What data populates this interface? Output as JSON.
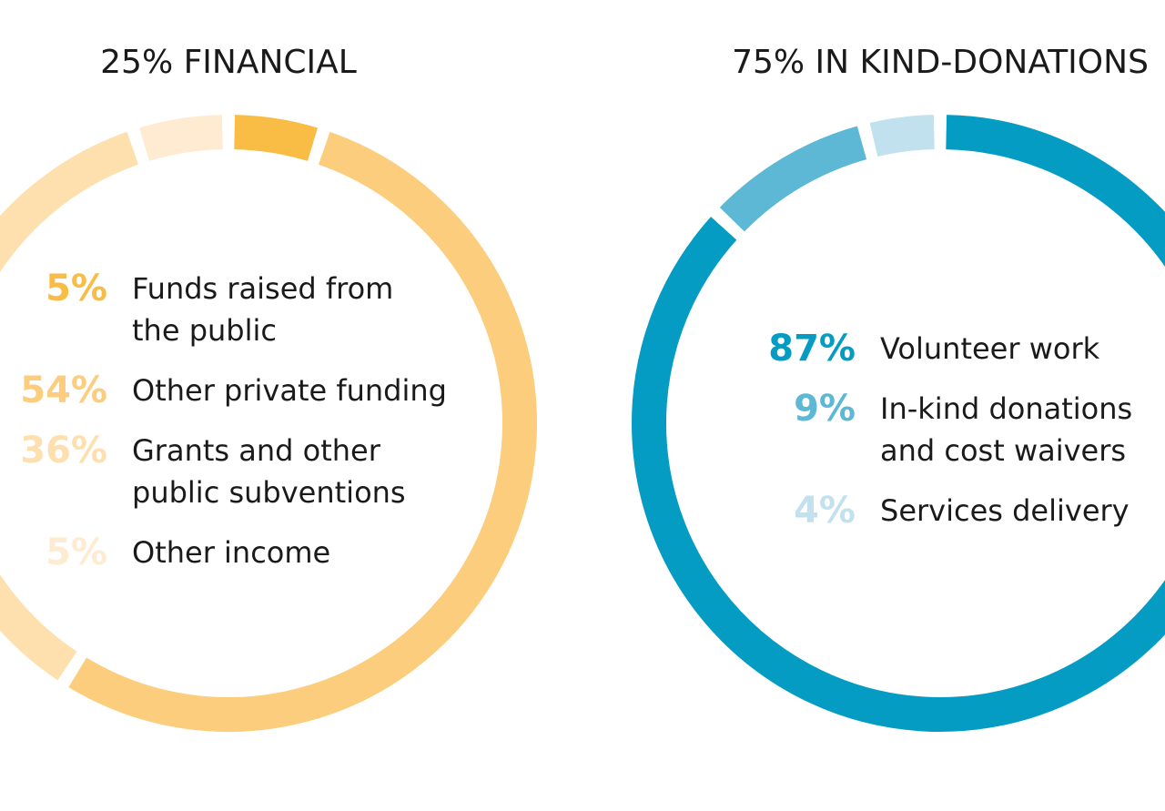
{
  "chart_data": [
    {
      "type": "pie",
      "title": "25% FINANCIAL",
      "series": [
        {
          "name": "Funds raised from the public",
          "label_lines": [
            "Funds raised from",
            "the public"
          ],
          "value": 5,
          "value_label": "5%",
          "color": "#f9bc45"
        },
        {
          "name": "Other private funding",
          "label_lines": [
            "Other private funding"
          ],
          "value": 54,
          "value_label": "54%",
          "color": "#fbcd7c"
        },
        {
          "name": "Grants and other public subventions",
          "label_lines": [
            "Grants and other",
            "public subventions"
          ],
          "value": 36,
          "value_label": "36%",
          "color": "#fde0ae"
        },
        {
          "name": "Other income",
          "label_lines": [
            "Other income"
          ],
          "value": 5,
          "value_label": "5%",
          "color": "#feebd1"
        }
      ]
    },
    {
      "type": "pie",
      "title": "75% IN KIND-DONATIONS",
      "series": [
        {
          "name": "Volunteer work",
          "label_lines": [
            "Volunteer work"
          ],
          "value": 87,
          "value_label": "87%",
          "color": "#049cc3"
        },
        {
          "name": "In-kind donations and cost waivers",
          "label_lines": [
            "In-kind donations",
            "and cost waivers"
          ],
          "value": 9,
          "value_label": "9%",
          "color": "#5cb8d4"
        },
        {
          "name": "Services delivery",
          "label_lines": [
            "Services delivery"
          ],
          "value": 4,
          "value_label": "4%",
          "color": "#c2e1ee"
        }
      ]
    }
  ]
}
